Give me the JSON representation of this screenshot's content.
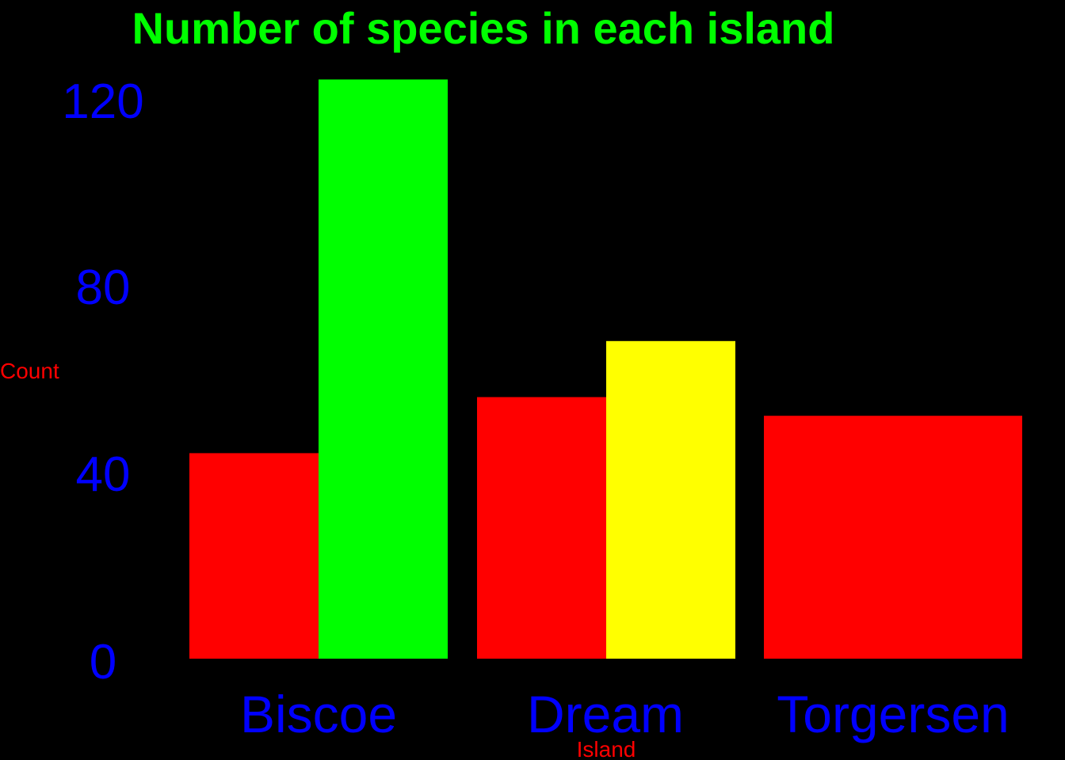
{
  "chart_data": {
    "type": "bar",
    "title": "Number of species in each island",
    "xlabel": "Island",
    "ylabel": "Count",
    "categories": [
      "Biscoe",
      "Dream",
      "Torgersen"
    ],
    "series": [
      {
        "values": [
          44,
          56,
          52
        ]
      },
      {
        "values": [
          124,
          null,
          null
        ]
      },
      {
        "values": [
          null,
          68,
          null
        ]
      }
    ],
    "yticks": [
      "0",
      "40",
      "80",
      "120"
    ],
    "ylim": [
      0,
      124
    ],
    "grid": false,
    "legend": "none"
  },
  "colors": {
    "background": "#000000",
    "title": "#00ff00",
    "tick_labels": "#0000ff",
    "axis_labels": "#ff0000",
    "series": [
      "#ff0000",
      "#00ff00",
      "#ffff00"
    ]
  }
}
